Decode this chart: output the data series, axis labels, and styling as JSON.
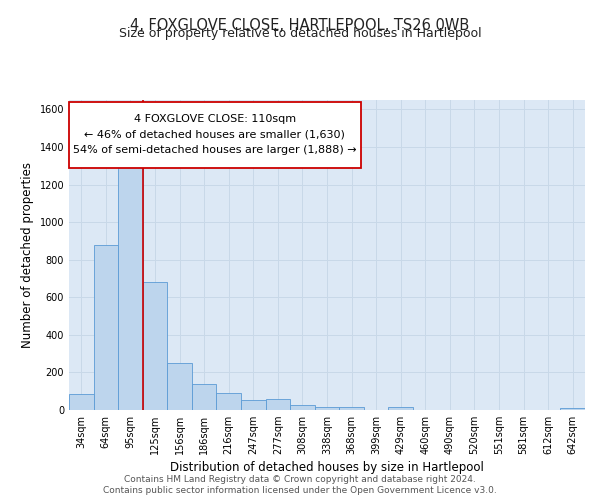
{
  "title": "4, FOXGLOVE CLOSE, HARTLEPOOL, TS26 0WB",
  "subtitle": "Size of property relative to detached houses in Hartlepool",
  "xlabel": "Distribution of detached houses by size in Hartlepool",
  "ylabel": "Number of detached properties",
  "bar_labels": [
    "34sqm",
    "64sqm",
    "95sqm",
    "125sqm",
    "156sqm",
    "186sqm",
    "216sqm",
    "247sqm",
    "277sqm",
    "308sqm",
    "338sqm",
    "368sqm",
    "399sqm",
    "429sqm",
    "460sqm",
    "490sqm",
    "520sqm",
    "551sqm",
    "581sqm",
    "612sqm",
    "642sqm"
  ],
  "bar_values": [
    85,
    880,
    1320,
    680,
    250,
    140,
    88,
    55,
    60,
    25,
    18,
    18,
    0,
    15,
    0,
    0,
    0,
    0,
    0,
    0,
    12
  ],
  "bar_color": "#bdd5ed",
  "bar_edge_color": "#5b9bd5",
  "vline_pos": 2.5,
  "vline_color": "#cc0000",
  "ylim": [
    0,
    1650
  ],
  "yticks": [
    0,
    200,
    400,
    600,
    800,
    1000,
    1200,
    1400,
    1600
  ],
  "ann_line1": "4 FOXGLOVE CLOSE: 110sqm",
  "ann_line2": "← 46% of detached houses are smaller (1,630)",
  "ann_line3": "54% of semi-detached houses are larger (1,888) →",
  "footer_line1": "Contains HM Land Registry data © Crown copyright and database right 2024.",
  "footer_line2": "Contains public sector information licensed under the Open Government Licence v3.0.",
  "bg_color": "#ffffff",
  "axes_bg_color": "#dce8f5",
  "grid_color": "#c8d8e8",
  "title_fontsize": 10.5,
  "subtitle_fontsize": 9,
  "xlabel_fontsize": 8.5,
  "ylabel_fontsize": 8.5,
  "tick_fontsize": 7,
  "ann_fontsize": 8,
  "footer_fontsize": 6.5
}
